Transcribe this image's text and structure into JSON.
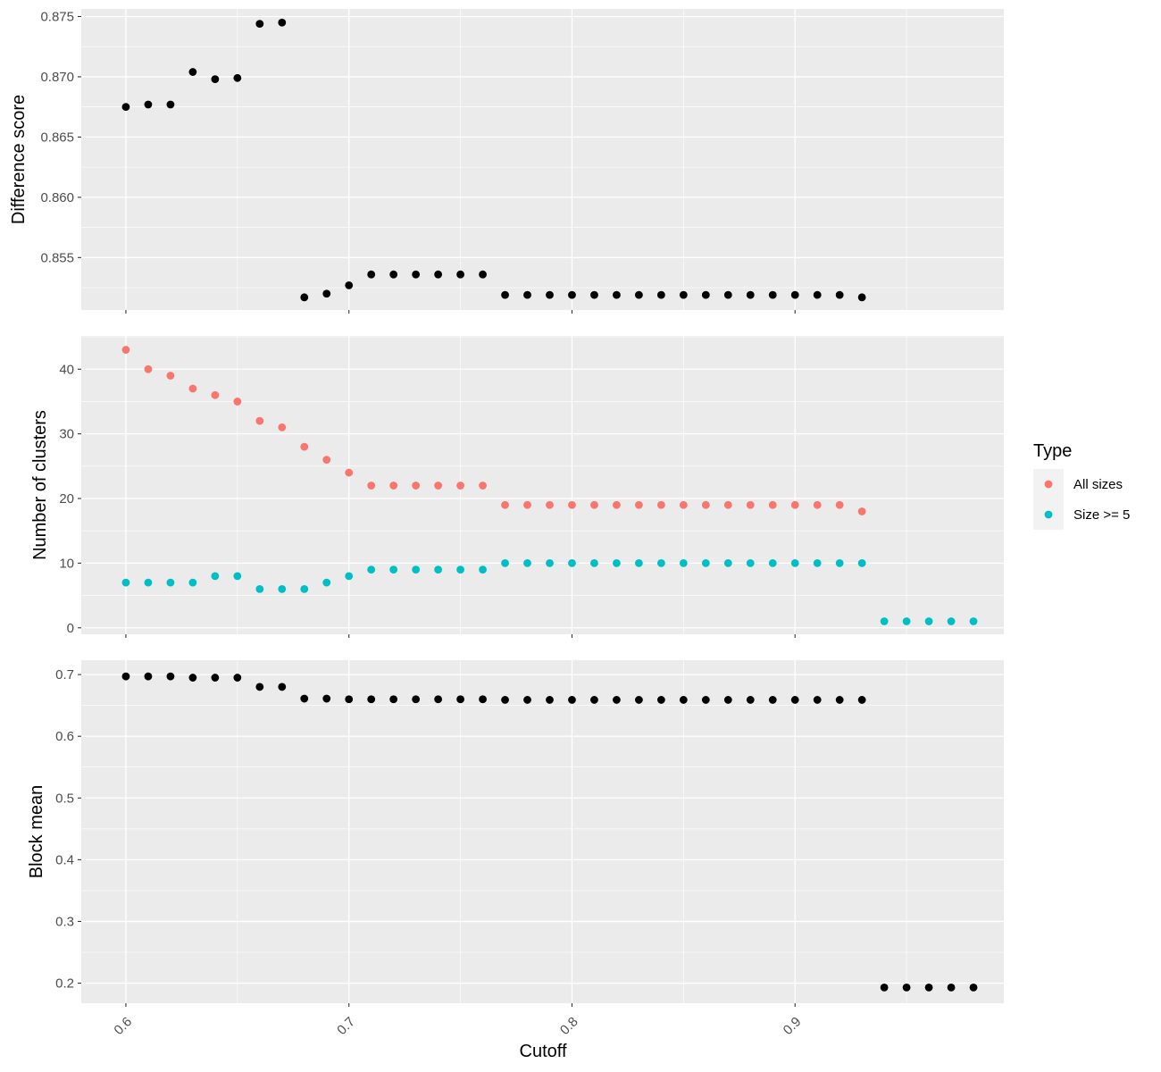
{
  "chart_data": {
    "type": "scatter",
    "xlabel": "Cutoff",
    "x_ticks": [
      0.6,
      0.7,
      0.8,
      0.9
    ],
    "x_tick_labels": [
      "0.6",
      "0.7",
      "0.8",
      "0.9"
    ],
    "xlim": [
      0.58,
      0.9936
    ],
    "panels": [
      {
        "id": "difference-score",
        "ylabel": "Difference score",
        "ylim": [
          0.85065,
          0.87563
        ],
        "y_ticks": [
          0.855,
          0.86,
          0.865,
          0.87,
          0.875
        ],
        "y_tick_labels": [
          "0.855",
          "0.860",
          "0.865",
          "0.870",
          "0.875"
        ],
        "series": [
          {
            "color": "#000000",
            "points": [
              [
                0.6,
                0.8675
              ],
              [
                0.61,
                0.8677
              ],
              [
                0.62,
                0.8677
              ],
              [
                0.63,
                0.8704
              ],
              [
                0.64,
                0.8698
              ],
              [
                0.65,
                0.8699
              ],
              [
                0.66,
                0.8744
              ],
              [
                0.67,
                0.8745
              ],
              [
                0.68,
                0.8517
              ],
              [
                0.69,
                0.852
              ],
              [
                0.7,
                0.8527
              ],
              [
                0.71,
                0.8536
              ],
              [
                0.72,
                0.8536
              ],
              [
                0.73,
                0.8536
              ],
              [
                0.74,
                0.8536
              ],
              [
                0.75,
                0.8536
              ],
              [
                0.76,
                0.8536
              ],
              [
                0.77,
                0.8519
              ],
              [
                0.78,
                0.8519
              ],
              [
                0.79,
                0.8519
              ],
              [
                0.8,
                0.8519
              ],
              [
                0.81,
                0.8519
              ],
              [
                0.82,
                0.8519
              ],
              [
                0.83,
                0.8519
              ],
              [
                0.84,
                0.8519
              ],
              [
                0.85,
                0.8519
              ],
              [
                0.86,
                0.8519
              ],
              [
                0.87,
                0.8519
              ],
              [
                0.88,
                0.8519
              ],
              [
                0.89,
                0.8519
              ],
              [
                0.9,
                0.8519
              ],
              [
                0.91,
                0.8519
              ],
              [
                0.92,
                0.8519
              ],
              [
                0.93,
                0.8517
              ]
            ]
          }
        ]
      },
      {
        "id": "number-of-clusters",
        "ylabel": "Number of clusters",
        "ylim": [
          -1.0,
          45.15
        ],
        "y_ticks": [
          0,
          10,
          20,
          30,
          40
        ],
        "y_tick_labels": [
          "0",
          "10",
          "20",
          "30",
          "40"
        ],
        "series": [
          {
            "name": "All sizes",
            "color": "#f8766d",
            "points": [
              [
                0.6,
                43
              ],
              [
                0.61,
                40
              ],
              [
                0.62,
                39
              ],
              [
                0.63,
                37
              ],
              [
                0.64,
                36
              ],
              [
                0.65,
                35
              ],
              [
                0.66,
                32
              ],
              [
                0.67,
                31
              ],
              [
                0.68,
                28
              ],
              [
                0.69,
                26
              ],
              [
                0.7,
                24
              ],
              [
                0.71,
                22
              ],
              [
                0.72,
                22
              ],
              [
                0.73,
                22
              ],
              [
                0.74,
                22
              ],
              [
                0.75,
                22
              ],
              [
                0.76,
                22
              ],
              [
                0.77,
                19
              ],
              [
                0.78,
                19
              ],
              [
                0.79,
                19
              ],
              [
                0.8,
                19
              ],
              [
                0.81,
                19
              ],
              [
                0.82,
                19
              ],
              [
                0.83,
                19
              ],
              [
                0.84,
                19
              ],
              [
                0.85,
                19
              ],
              [
                0.86,
                19
              ],
              [
                0.87,
                19
              ],
              [
                0.88,
                19
              ],
              [
                0.89,
                19
              ],
              [
                0.9,
                19
              ],
              [
                0.91,
                19
              ],
              [
                0.92,
                19
              ],
              [
                0.93,
                18
              ]
            ]
          },
          {
            "name": "Size >= 5",
            "color": "#00bfc4",
            "points": [
              [
                0.6,
                7
              ],
              [
                0.61,
                7
              ],
              [
                0.62,
                7
              ],
              [
                0.63,
                7
              ],
              [
                0.64,
                8
              ],
              [
                0.65,
                8
              ],
              [
                0.66,
                6
              ],
              [
                0.67,
                6
              ],
              [
                0.68,
                6
              ],
              [
                0.69,
                7
              ],
              [
                0.7,
                8
              ],
              [
                0.71,
                9
              ],
              [
                0.72,
                9
              ],
              [
                0.73,
                9
              ],
              [
                0.74,
                9
              ],
              [
                0.75,
                9
              ],
              [
                0.76,
                9
              ],
              [
                0.77,
                10
              ],
              [
                0.78,
                10
              ],
              [
                0.79,
                10
              ],
              [
                0.8,
                10
              ],
              [
                0.81,
                10
              ],
              [
                0.82,
                10
              ],
              [
                0.83,
                10
              ],
              [
                0.84,
                10
              ],
              [
                0.85,
                10
              ],
              [
                0.86,
                10
              ],
              [
                0.87,
                10
              ],
              [
                0.88,
                10
              ],
              [
                0.89,
                10
              ],
              [
                0.9,
                10
              ],
              [
                0.91,
                10
              ],
              [
                0.92,
                10
              ],
              [
                0.93,
                10
              ],
              [
                0.94,
                1
              ],
              [
                0.95,
                1
              ],
              [
                0.96,
                1
              ],
              [
                0.97,
                1
              ],
              [
                0.98,
                1
              ]
            ]
          }
        ]
      },
      {
        "id": "block-mean",
        "ylabel": "Block mean",
        "ylim": [
          0.1675,
          0.7233
        ],
        "y_ticks": [
          0.2,
          0.3,
          0.4,
          0.5,
          0.6,
          0.7
        ],
        "y_tick_labels": [
          "0.2",
          "0.3",
          "0.4",
          "0.5",
          "0.6",
          "0.7"
        ],
        "series": [
          {
            "color": "#000000",
            "points": [
              [
                0.6,
                0.697
              ],
              [
                0.61,
                0.697
              ],
              [
                0.62,
                0.697
              ],
              [
                0.63,
                0.695
              ],
              [
                0.64,
                0.695
              ],
              [
                0.65,
                0.695
              ],
              [
                0.66,
                0.68
              ],
              [
                0.67,
                0.68
              ],
              [
                0.68,
                0.661
              ],
              [
                0.69,
                0.661
              ],
              [
                0.7,
                0.66
              ],
              [
                0.71,
                0.66
              ],
              [
                0.72,
                0.66
              ],
              [
                0.73,
                0.66
              ],
              [
                0.74,
                0.66
              ],
              [
                0.75,
                0.66
              ],
              [
                0.76,
                0.66
              ],
              [
                0.77,
                0.659
              ],
              [
                0.78,
                0.659
              ],
              [
                0.79,
                0.659
              ],
              [
                0.8,
                0.659
              ],
              [
                0.81,
                0.659
              ],
              [
                0.82,
                0.659
              ],
              [
                0.83,
                0.659
              ],
              [
                0.84,
                0.659
              ],
              [
                0.85,
                0.659
              ],
              [
                0.86,
                0.659
              ],
              [
                0.87,
                0.659
              ],
              [
                0.88,
                0.659
              ],
              [
                0.89,
                0.659
              ],
              [
                0.9,
                0.659
              ],
              [
                0.91,
                0.659
              ],
              [
                0.92,
                0.659
              ],
              [
                0.93,
                0.659
              ],
              [
                0.94,
                0.193
              ],
              [
                0.95,
                0.193
              ],
              [
                0.96,
                0.193
              ],
              [
                0.97,
                0.193
              ],
              [
                0.98,
                0.193
              ]
            ]
          }
        ]
      }
    ],
    "legend": {
      "title": "Type",
      "placement": "right",
      "items": [
        {
          "label": "All sizes",
          "color": "#f8766d"
        },
        {
          "label": "Size >= 5",
          "color": "#00bfc4"
        }
      ]
    },
    "grid": true
  }
}
